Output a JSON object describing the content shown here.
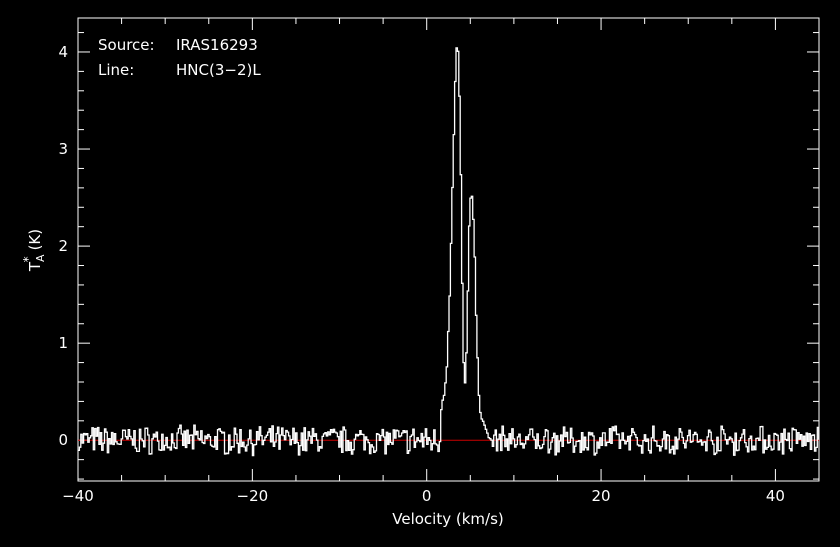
{
  "chart_data": {
    "type": "line",
    "xlabel": "Velocity (km/s)",
    "ylabel_parts": {
      "T": "T",
      "sub": "A",
      "sup": "*",
      "unit": "(K)"
    },
    "xlim": [
      -40,
      45
    ],
    "ylim": [
      -0.42,
      4.35
    ],
    "x_ticks": [
      -40,
      -20,
      0,
      20,
      40
    ],
    "x_tick_labels": [
      "−40",
      "−20",
      "0",
      "20",
      "40"
    ],
    "y_ticks": [
      0,
      1,
      2,
      3,
      4
    ],
    "y_tick_labels": [
      "0",
      "1",
      "2",
      "3",
      "4"
    ],
    "baseline": {
      "value": 0,
      "color": "#cc0000"
    },
    "info": {
      "source_label": "Source:",
      "source_value": "IRAS16293",
      "line_label": "Line:",
      "line_value": "HNC(3−2)L"
    },
    "series": [
      {
        "color": "#ffffff",
        "step": true,
        "x": [
          -40.0,
          -39.0,
          -38.0,
          -37.0,
          -36.0,
          -35.0,
          -34.0,
          -33.0,
          -32.0,
          -31.0,
          -30.0,
          -29.0,
          -28.0,
          -27.0,
          -26.0,
          -25.0,
          -24.0,
          -23.0,
          -22.0,
          -21.0,
          -20.0,
          -19.0,
          -18.0,
          -17.0,
          -16.0,
          -15.0,
          -14.0,
          -13.0,
          -12.0,
          -11.0,
          -10.0,
          -9.0,
          -8.0,
          -7.0,
          -6.0,
          -5.0,
          -4.0,
          -3.0,
          -2.0,
          -1.0,
          0.0,
          0.5,
          1.0,
          1.5,
          2.0,
          2.3,
          2.6,
          2.9,
          3.2,
          3.4,
          3.6,
          3.8,
          4.0,
          4.2,
          4.4,
          4.6,
          4.8,
          5.0,
          5.2,
          5.4,
          5.6,
          5.8,
          6.0,
          6.3,
          6.6,
          7.0,
          7.5,
          8.0,
          9.0,
          10.0,
          11.0,
          12.0,
          13.0,
          14.0,
          15.0,
          16.0,
          17.0,
          18.0,
          19.0,
          20.0,
          21.0,
          22.0,
          23.0,
          24.0,
          25.0,
          26.0,
          27.0,
          28.0,
          29.0,
          30.0,
          31.0,
          32.0,
          33.0,
          34.0,
          35.0,
          36.0,
          37.0,
          38.0,
          39.0,
          40.0,
          41.0,
          42.0,
          43.0,
          44.0,
          45.0
        ],
        "y": [
          0.05,
          -0.08,
          0.06,
          -0.1,
          0.04,
          -0.06,
          0.08,
          -0.09,
          0.03,
          -0.05,
          0.07,
          -0.11,
          0.05,
          -0.04,
          0.09,
          -0.08,
          0.02,
          -0.12,
          0.06,
          -0.03,
          0.08,
          -0.07,
          0.04,
          -0.09,
          0.06,
          -0.05,
          0.02,
          -0.1,
          0.07,
          -0.06,
          0.05,
          -0.08,
          0.03,
          -0.11,
          0.06,
          -0.04,
          0.08,
          -0.07,
          0.04,
          0.02,
          0.05,
          0.12,
          0.2,
          0.3,
          0.5,
          0.85,
          1.6,
          2.7,
          3.7,
          4.15,
          3.9,
          3.0,
          1.6,
          0.6,
          0.55,
          1.4,
          2.2,
          2.55,
          2.45,
          2.0,
          1.3,
          0.7,
          0.35,
          0.2,
          0.12,
          0.05,
          -0.04,
          0.06,
          -0.08,
          0.05,
          -0.06,
          0.07,
          -0.1,
          0.04,
          -0.05,
          0.08,
          -0.09,
          0.03,
          -0.12,
          0.06,
          -0.04,
          0.09,
          -0.07,
          0.05,
          -0.06,
          0.02,
          -0.1,
          0.07,
          -0.05,
          0.06,
          -0.08,
          0.04,
          -0.09,
          0.08,
          -0.05,
          0.03,
          -0.11,
          0.06,
          -0.04,
          0.07,
          -0.06,
          0.05,
          -0.08,
          0.04,
          0.1
        ]
      }
    ]
  }
}
